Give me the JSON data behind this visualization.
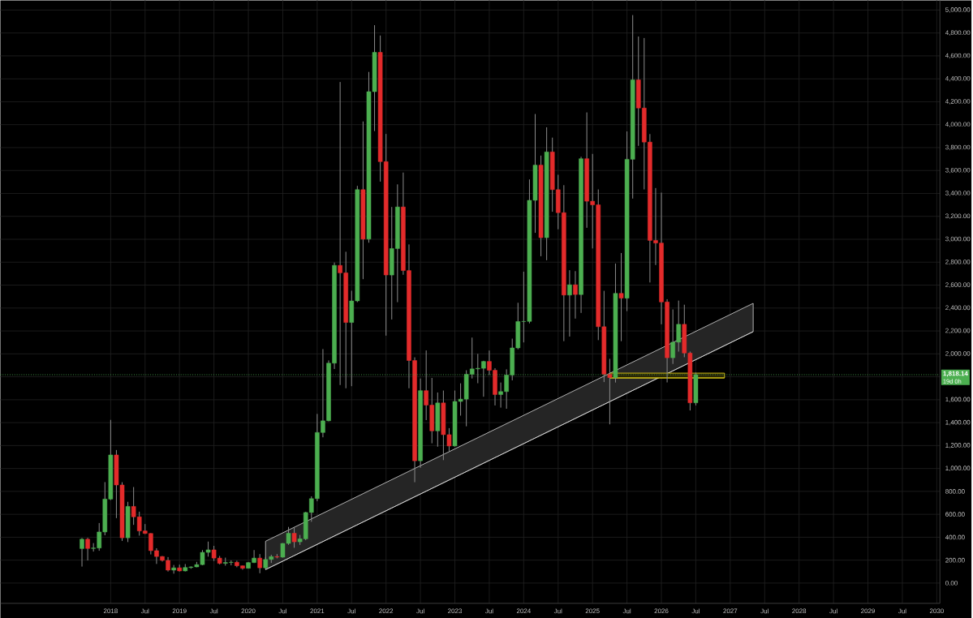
{
  "chart_data": {
    "type": "candlestick",
    "x": [
      "2017-08",
      "2017-09",
      "2017-10",
      "2017-11",
      "2017-12",
      "2018-01",
      "2018-02",
      "2018-03",
      "2018-04",
      "2018-05",
      "2018-06",
      "2018-07",
      "2018-08",
      "2018-09",
      "2018-10",
      "2018-11",
      "2018-12",
      "2019-01",
      "2019-02",
      "2019-03",
      "2019-04",
      "2019-05",
      "2019-06",
      "2019-07",
      "2019-08",
      "2019-09",
      "2019-10",
      "2019-11",
      "2019-12",
      "2020-01",
      "2020-02",
      "2020-03",
      "2020-04",
      "2020-05",
      "2020-06",
      "2020-07",
      "2020-08",
      "2020-09",
      "2020-10",
      "2020-11",
      "2020-12",
      "2021-01",
      "2021-02",
      "2021-03",
      "2021-04",
      "2021-05",
      "2021-06",
      "2021-07",
      "2021-08",
      "2021-09",
      "2021-10",
      "2021-11",
      "2021-12",
      "2022-01",
      "2022-02",
      "2022-03",
      "2022-04",
      "2022-05",
      "2022-06",
      "2022-07",
      "2022-08",
      "2022-09",
      "2022-10",
      "2022-11",
      "2022-12",
      "2023-01",
      "2023-02",
      "2023-03",
      "2023-04",
      "2023-05",
      "2023-06",
      "2023-07",
      "2023-08",
      "2023-09",
      "2023-10",
      "2023-11",
      "2023-12",
      "2024-01",
      "2024-02",
      "2024-03",
      "2024-04",
      "2024-05",
      "2024-06",
      "2024-07",
      "2024-08",
      "2024-09",
      "2024-10",
      "2024-11",
      "2024-12",
      "2025-01",
      "2025-02",
      "2025-03",
      "2025-04",
      "2025-05",
      "2025-06",
      "2025-07",
      "2025-08",
      "2025-09",
      "2025-10",
      "2025-11",
      "2025-12",
      "2026-01",
      "2026-02",
      "2026-03",
      "2026-04",
      "2026-05",
      "2026-06",
      "2026-07"
    ],
    "ohlc": [
      [
        301,
        393,
        144,
        383
      ],
      [
        383,
        395,
        197,
        302
      ],
      [
        302,
        349,
        275,
        306
      ],
      [
        306,
        524,
        282,
        446
      ],
      [
        446,
        881,
        417,
        733
      ],
      [
        733,
        1424,
        724,
        1118
      ],
      [
        1118,
        1161,
        567,
        856
      ],
      [
        856,
        880,
        368,
        395
      ],
      [
        395,
        709,
        358,
        669
      ],
      [
        669,
        838,
        508,
        578
      ],
      [
        578,
        623,
        414,
        455
      ],
      [
        455,
        515,
        428,
        433
      ],
      [
        433,
        436,
        250,
        283
      ],
      [
        283,
        304,
        167,
        232
      ],
      [
        232,
        236,
        188,
        198
      ],
      [
        198,
        227,
        101,
        113
      ],
      [
        113,
        158,
        82,
        133
      ],
      [
        133,
        161,
        101,
        106
      ],
      [
        106,
        166,
        102,
        136
      ],
      [
        136,
        146,
        125,
        141
      ],
      [
        141,
        185,
        138,
        161
      ],
      [
        161,
        288,
        156,
        268
      ],
      [
        268,
        362,
        231,
        290
      ],
      [
        290,
        325,
        193,
        218
      ],
      [
        218,
        237,
        163,
        172
      ],
      [
        172,
        222,
        152,
        180
      ],
      [
        180,
        198,
        155,
        182
      ],
      [
        182,
        195,
        138,
        151
      ],
      [
        151,
        153,
        117,
        129
      ],
      [
        129,
        184,
        127,
        179
      ],
      [
        179,
        288,
        175,
        218
      ],
      [
        218,
        253,
        86,
        133
      ],
      [
        133,
        227,
        131,
        206
      ],
      [
        206,
        247,
        176,
        231
      ],
      [
        231,
        253,
        216,
        226
      ],
      [
        226,
        349,
        222,
        346
      ],
      [
        346,
        490,
        334,
        435
      ],
      [
        435,
        488,
        308,
        360
      ],
      [
        360,
        420,
        333,
        386
      ],
      [
        386,
        622,
        374,
        616
      ],
      [
        616,
        757,
        535,
        737
      ],
      [
        737,
        1476,
        714,
        1314
      ],
      [
        1314,
        2042,
        1272,
        1416
      ],
      [
        1416,
        1943,
        1411,
        1919
      ],
      [
        1919,
        2797,
        1868,
        2772
      ],
      [
        2772,
        4372,
        1728,
        2707
      ],
      [
        2707,
        2891,
        1700,
        2274
      ],
      [
        2274,
        2551,
        1718,
        2462
      ],
      [
        2462,
        3466,
        2451,
        3433
      ],
      [
        3433,
        4028,
        2652,
        3001
      ],
      [
        3001,
        4460,
        2970,
        4288
      ],
      [
        4288,
        4868,
        3944,
        4631
      ],
      [
        4631,
        4778,
        3503,
        3677
      ],
      [
        3677,
        3919,
        2159,
        2688
      ],
      [
        2688,
        3282,
        2300,
        2919
      ],
      [
        2919,
        3479,
        2451,
        3282
      ],
      [
        3282,
        3582,
        2690,
        2727
      ],
      [
        2727,
        2955,
        1700,
        1942
      ],
      [
        1942,
        1970,
        880,
        1067
      ],
      [
        1067,
        1785,
        1006,
        1679
      ],
      [
        1679,
        2030,
        1422,
        1553
      ],
      [
        1553,
        1790,
        1220,
        1328
      ],
      [
        1328,
        1663,
        1190,
        1572
      ],
      [
        1572,
        1680,
        1073,
        1295
      ],
      [
        1295,
        1352,
        1150,
        1196
      ],
      [
        1196,
        1680,
        1191,
        1585
      ],
      [
        1585,
        1743,
        1461,
        1605
      ],
      [
        1605,
        1857,
        1368,
        1822
      ],
      [
        1822,
        2142,
        1785,
        1869
      ],
      [
        1869,
        2000,
        1744,
        1874
      ],
      [
        1874,
        1940,
        1626,
        1934
      ],
      [
        1934,
        2029,
        1816,
        1857
      ],
      [
        1857,
        1875,
        1550,
        1645
      ],
      [
        1645,
        1750,
        1531,
        1671
      ],
      [
        1671,
        1865,
        1521,
        1815
      ],
      [
        1815,
        2133,
        1769,
        2052
      ],
      [
        2052,
        2446,
        2040,
        2282
      ],
      [
        2282,
        2717,
        2100,
        2283
      ],
      [
        2283,
        3522,
        2266,
        3340
      ],
      [
        3340,
        4093,
        3056,
        3647
      ],
      [
        3647,
        3730,
        2852,
        3014
      ],
      [
        3014,
        3977,
        2817,
        3762
      ],
      [
        3762,
        3887,
        3240,
        3433
      ],
      [
        3433,
        3563,
        3087,
        3232
      ],
      [
        3232,
        3472,
        2111,
        2513
      ],
      [
        2513,
        2730,
        2151,
        2603
      ],
      [
        2603,
        2722,
        2308,
        2518
      ],
      [
        2518,
        3720,
        2357,
        3703
      ],
      [
        3703,
        4107,
        3100,
        3332
      ],
      [
        3332,
        3745,
        2920,
        3300
      ],
      [
        3300,
        3435,
        2120,
        2237
      ],
      [
        2237,
        2550,
        1754,
        1822
      ],
      [
        1822,
        1957,
        1385,
        1793
      ],
      [
        1793,
        2788,
        1750,
        2528
      ],
      [
        2528,
        2880,
        2111,
        2486
      ],
      [
        2486,
        3941,
        2373,
        3698
      ],
      [
        3698,
        4956,
        3355,
        4391
      ],
      [
        4391,
        4769,
        3815,
        4145
      ],
      [
        4145,
        4756,
        3435,
        3848
      ],
      [
        3848,
        3918,
        2623,
        2990
      ],
      [
        2990,
        3447,
        2775,
        2967
      ],
      [
        2967,
        3407,
        2258,
        2453
      ],
      [
        2453,
        2477,
        1751,
        1966
      ],
      [
        1966,
        2388,
        1912,
        2102
      ],
      [
        2102,
        2465,
        2020,
        2258
      ],
      [
        2258,
        2429,
        1971,
        2007
      ],
      [
        2007,
        2020,
        1506,
        1573
      ],
      [
        1573,
        1836,
        1550,
        1818.14
      ]
    ],
    "colors": [
      "#4caf50",
      "#e32b2b",
      "#4caf50",
      "#4caf50",
      "#4caf50",
      "#4caf50",
      "#e32b2b",
      "#e32b2b",
      "#4caf50",
      "#e32b2b",
      "#e32b2b",
      "#e32b2b",
      "#e32b2b",
      "#e32b2b",
      "#e32b2b",
      "#e32b2b",
      "#4caf50",
      "#e32b2b",
      "#4caf50",
      "#4caf50",
      "#4caf50",
      "#4caf50",
      "#4caf50",
      "#e32b2b",
      "#e32b2b",
      "#4caf50",
      "#4caf50",
      "#e32b2b",
      "#e32b2b",
      "#4caf50",
      "#4caf50",
      "#e32b2b",
      "#4caf50",
      "#4caf50",
      "#e32b2b",
      "#4caf50",
      "#4caf50",
      "#e32b2b",
      "#4caf50",
      "#4caf50",
      "#4caf50",
      "#4caf50",
      "#4caf50",
      "#4caf50",
      "#4caf50",
      "#e32b2b",
      "#e32b2b",
      "#4caf50",
      "#4caf50",
      "#e32b2b",
      "#4caf50",
      "#4caf50",
      "#e32b2b",
      "#e32b2b",
      "#4caf50",
      "#4caf50",
      "#e32b2b",
      "#e32b2b",
      "#e32b2b",
      "#4caf50",
      "#e32b2b",
      "#e32b2b",
      "#4caf50",
      "#e32b2b",
      "#e32b2b",
      "#4caf50",
      "#4caf50",
      "#4caf50",
      "#4caf50",
      "#4caf50",
      "#4caf50",
      "#e32b2b",
      "#e32b2b",
      "#4caf50",
      "#4caf50",
      "#4caf50",
      "#4caf50",
      "#4caf50",
      "#4caf50",
      "#4caf50",
      "#e32b2b",
      "#4caf50",
      "#e32b2b",
      "#e32b2b",
      "#e32b2b",
      "#4caf50",
      "#e32b2b",
      "#4caf50",
      "#e32b2b",
      "#e32b2b",
      "#e32b2b",
      "#e32b2b",
      "#e32b2b",
      "#4caf50",
      "#e32b2b",
      "#4caf50",
      "#4caf50",
      "#e32b2b",
      "#e32b2b",
      "#e32b2b",
      "#e32b2b",
      "#e32b2b",
      "#e32b2b",
      "#4caf50",
      "#4caf50",
      "#e32b2b",
      "#e32b2b",
      "#4caf50"
    ],
    "series": [
      {
        "type": "line",
        "x": [
          "2020-04",
          "2027-05"
        ],
        "values": [
          118,
          2194
        ],
        "lower": [
          118,
          2194
        ],
        "upper": [
          365,
          2441
        ],
        "color": "#d9d9d9"
      },
      {
        "type": "line",
        "x": [
          "2025-04",
          "2026-12"
        ],
        "values": [
          1790,
          1790
        ],
        "lower": [
          1790,
          1790
        ],
        "upper": [
          1832,
          1832
        ],
        "color": "#f5e21b"
      }
    ],
    "xlim": [
      "2016-05-25",
      "2030-01-18"
    ],
    "ylim": [
      -177,
      5085
    ],
    "xticks": [
      {
        "value": "2018-01",
        "label": "2018"
      },
      {
        "value": "2018-07",
        "label": "Jul"
      },
      {
        "value": "2019-01",
        "label": "2019"
      },
      {
        "value": "2019-07",
        "label": "Jul"
      },
      {
        "value": "2020-01",
        "label": "2020"
      },
      {
        "value": "2020-07",
        "label": "Jul"
      },
      {
        "value": "2021-01",
        "label": "2021"
      },
      {
        "value": "2021-07",
        "label": "Jul"
      },
      {
        "value": "2022-01",
        "label": "2022"
      },
      {
        "value": "2022-07",
        "label": "Jul"
      },
      {
        "value": "2023-01",
        "label": "2023"
      },
      {
        "value": "2023-07",
        "label": "Jul"
      },
      {
        "value": "2024-01",
        "label": "2024"
      },
      {
        "value": "2024-07",
        "label": "Jul"
      },
      {
        "value": "2025-01",
        "label": "2025"
      },
      {
        "value": "2025-07",
        "label": "Jul"
      },
      {
        "value": "2026-01",
        "label": "2026"
      },
      {
        "value": "2026-07",
        "label": "Jul"
      },
      {
        "value": "2027-01",
        "label": "2027"
      },
      {
        "value": "2027-07",
        "label": "Jul"
      },
      {
        "value": "2028-01",
        "label": "2028"
      },
      {
        "value": "2028-07",
        "label": "Jul"
      },
      {
        "value": "2029-01",
        "label": "2029"
      },
      {
        "value": "2029-07",
        "label": "Jul"
      },
      {
        "value": "2030-01",
        "label": "2030"
      }
    ],
    "yticks": [
      {
        "value": 0,
        "label": "0.00"
      },
      {
        "value": 200,
        "label": "200.00"
      },
      {
        "value": 400,
        "label": "400.00"
      },
      {
        "value": 600,
        "label": "600.00"
      },
      {
        "value": 800,
        "label": "800.00"
      },
      {
        "value": 1000,
        "label": "1,000.00"
      },
      {
        "value": 1200,
        "label": "1,200.00"
      },
      {
        "value": 1400,
        "label": "1,400.00"
      },
      {
        "value": 1600,
        "label": "1,600.00"
      },
      {
        "value": 1800,
        "label": null
      },
      {
        "value": 2000,
        "label": "2,000.00"
      },
      {
        "value": 2200,
        "label": "2,200.00"
      },
      {
        "value": 2400,
        "label": "2,400.00"
      },
      {
        "value": 2600,
        "label": "2,600.00"
      },
      {
        "value": 2800,
        "label": "2,800.00"
      },
      {
        "value": 3000,
        "label": "3,000.00"
      },
      {
        "value": 3200,
        "label": "3,200.00"
      },
      {
        "value": 3400,
        "label": "3,400.00"
      },
      {
        "value": 3600,
        "label": "3,600.00"
      },
      {
        "value": 3800,
        "label": "3,800.00"
      },
      {
        "value": 4000,
        "label": "4,000.00"
      },
      {
        "value": 4200,
        "label": "4,200.00"
      },
      {
        "value": 4400,
        "label": "4,400.00"
      },
      {
        "value": 4600,
        "label": "4,600.00"
      },
      {
        "value": 4800,
        "label": "4,800.00"
      },
      {
        "value": 5000,
        "label": "5,000.00"
      }
    ],
    "grid": true,
    "ref_lines": [
      {
        "axis": "y",
        "value": 1818.14,
        "label": "1,818.14",
        "color": "#4caf50",
        "line_style": "dotted"
      }
    ],
    "annotations": [
      "19d 0h"
    ]
  }
}
